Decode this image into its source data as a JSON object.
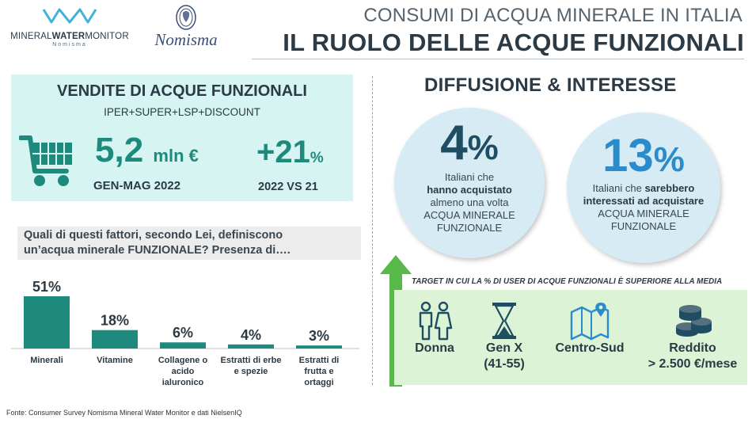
{
  "header": {
    "logo_left": {
      "name_part1": "MINERAL",
      "name_part2": "WATER",
      "name_part3": "MONITOR",
      "subtitle": "Nomisma",
      "icon": "water-wave-logo-icon"
    },
    "logo_right": {
      "name": "Nomisma",
      "icon": "nomisma-seal-logo-icon"
    },
    "title_line1": "CONSUMI DI ACQUA MINERALE IN ITALIA",
    "title_line2": "IL RUOLO DELLE ACQUE FUNZIONALI"
  },
  "sales": {
    "title": "VENDITE DI ACQUE FUNZIONALI",
    "channel": "IPER+SUPER+LSP+DISCOUNT",
    "icon": "shopping-cart-icon",
    "value": "5,2",
    "unit": "mln €",
    "period": "GEN-MAG 2022",
    "growth": "+21",
    "growth_unit": "%",
    "comparison": "2022 VS 21"
  },
  "question": {
    "line1": "Quali di questi fattori, secondo Lei, definiscono",
    "line2": "un’acqua minerale FUNZIONALE? Presenza di…."
  },
  "chart_data": {
    "type": "bar",
    "categories": [
      [
        "Minerali"
      ],
      [
        "Vitamine"
      ],
      [
        "Collagene o",
        "acido",
        "ialuronico"
      ],
      [
        "Estratti di erbe",
        "e spezie"
      ],
      [
        "Estratti di",
        "frutta e",
        "ortaggi"
      ]
    ],
    "values": [
      51,
      18,
      6,
      4,
      3
    ],
    "value_labels": [
      "51%",
      "18%",
      "6%",
      "4%",
      "3%"
    ],
    "ylim": [
      0,
      51
    ],
    "bar_color": "#1e8a7d",
    "axis_color": "#bfbfbf",
    "grid": false
  },
  "diffusion": {
    "title": "DIFFUSIONE & INTERESSE",
    "stat1": {
      "value": "4",
      "unit": "%",
      "line1": "Italiani che",
      "line2": "hanno acquistato",
      "line3": "almeno una volta",
      "line4": "ACQUA MINERALE",
      "line5": "FUNZIONALE"
    },
    "stat2": {
      "value": "13",
      "unit": "%",
      "line1_plain": "Italiani che ",
      "line1_bold": "sarebbero",
      "line2": "interessati ad acquistare",
      "line3": "ACQUA MINERALE",
      "line4": "FUNZIONALE"
    }
  },
  "target": {
    "title": "TARGET IN CUI LA % DI USER DI ACQUE FUNZIONALI È SUPERIORE ALLA MEDIA",
    "arrow_icon": "up-arrow-icon",
    "segments": [
      {
        "icon": "couple-icon",
        "label1": "Donna",
        "label2": ""
      },
      {
        "icon": "hourglass-icon",
        "label1": "Gen X",
        "label2": "(41-55)"
      },
      {
        "icon": "map-pin-icon",
        "label1": "Centro-Sud",
        "label2": ""
      },
      {
        "icon": "coins-icon",
        "label1": "Reddito",
        "label2": "> 2.500 €/mese"
      }
    ]
  },
  "source": "Fonte: Consumer Survey Nomisma Mineral Water Monitor e dati NielsenIQ",
  "colors": {
    "accent_teal": "#1e8a7d",
    "accent_blue": "#2a8ccb",
    "dark_blue": "#1f4e63",
    "sales_bg": "#d6f4f2",
    "target_bg": "#dcf3d6",
    "arrow_green": "#57b947",
    "circle_bg": "#d7ebf5"
  }
}
